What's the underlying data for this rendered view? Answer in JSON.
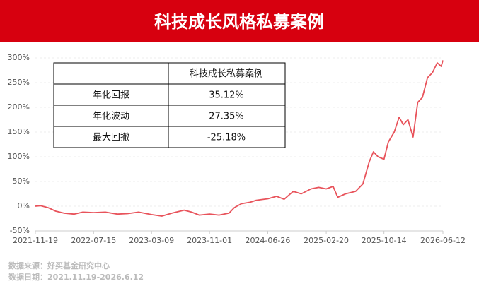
{
  "chart_data": {
    "type": "line",
    "title": "科技成长风格私募案例",
    "x": [
      "2021-11-19",
      "2021-12-10",
      "2022-01-10",
      "2022-02-10",
      "2022-03-15",
      "2022-04-26",
      "2022-06-01",
      "2022-07-15",
      "2022-09-01",
      "2022-10-20",
      "2022-12-01",
      "2023-01-15",
      "2023-03-09",
      "2023-04-20",
      "2023-06-01",
      "2023-07-20",
      "2023-08-20",
      "2023-09-20",
      "2023-11-01",
      "2023-12-10",
      "2024-01-20",
      "2024-02-10",
      "2024-03-10",
      "2024-04-15",
      "2024-05-10",
      "2024-06-26",
      "2024-08-01",
      "2024-09-01",
      "2024-10-08",
      "2024-11-10",
      "2024-12-20",
      "2025-01-20",
      "2025-02-20",
      "2025-03-20",
      "2025-04-08",
      "2025-05-10",
      "2025-06-20",
      "2025-07-20",
      "2025-08-15",
      "2025-09-01",
      "2025-09-20",
      "2025-10-14",
      "2025-11-01",
      "2025-11-25",
      "2025-12-15",
      "2026-01-01",
      "2026-01-20",
      "2026-02-10",
      "2026-03-01",
      "2026-03-20",
      "2026-04-10",
      "2026-04-30",
      "2026-05-20",
      "2026-06-05",
      "2026-06-12"
    ],
    "series": [
      {
        "color": "#e8535b",
        "values": [
          0,
          1,
          -3,
          -10,
          -14,
          -16,
          -12,
          -13,
          -12,
          -16,
          -15,
          -12,
          -17,
          -20,
          -14,
          -8,
          -12,
          -18,
          -16,
          -18,
          -14,
          -3,
          5,
          8,
          12,
          15,
          20,
          14,
          30,
          25,
          35,
          38,
          35,
          40,
          18,
          25,
          30,
          45,
          90,
          110,
          100,
          95,
          130,
          150,
          180,
          165,
          175,
          140,
          210,
          220,
          260,
          270,
          290,
          283,
          295
        ]
      }
    ],
    "xlim": [
      "2021-11-19",
      "2026-06-12"
    ],
    "xticks": [
      "2021-11-19",
      "2022-07-15",
      "2023-03-09",
      "2023-11-01",
      "2024-06-26",
      "2025-02-20",
      "2025-10-14",
      "2026-06-12"
    ],
    "ylim": [
      -50,
      300
    ],
    "yticks": [
      {
        "value": -50,
        "label": "-50%"
      },
      {
        "value": 0,
        "label": "0%"
      },
      {
        "value": 50,
        "label": "50%"
      },
      {
        "value": 100,
        "label": "100%"
      },
      {
        "value": 150,
        "label": "150%"
      },
      {
        "value": 200,
        "label": "200%"
      },
      {
        "value": 250,
        "label": "250%"
      },
      {
        "value": 300,
        "label": "300%"
      }
    ],
    "grid": true,
    "table": {
      "column_header": "科技成长私募案例",
      "rows": [
        [
          "年化回报",
          "35.12%"
        ],
        [
          "年化波动",
          "27.35%"
        ],
        [
          "最大回撤",
          "-25.18%"
        ]
      ]
    },
    "source": "数据来源：好买基金研究中心",
    "date_range": "数据日期：2021.11.19-2026.6.12"
  }
}
